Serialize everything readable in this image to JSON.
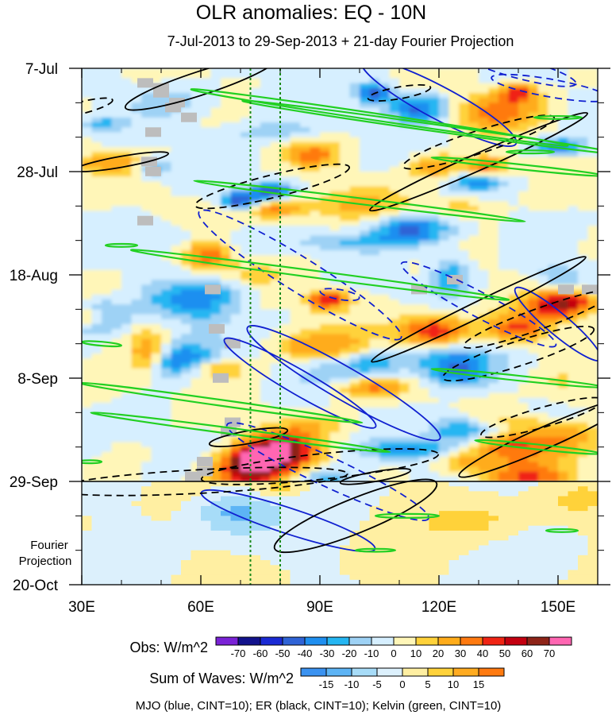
{
  "chart_data": {
    "type": "heatmap",
    "title": "OLR anomalies: EQ - 10N",
    "subtitle": "7-Jul-2013 to 29-Sep-2013 + 21-day Fourier Projection",
    "xlabel": "",
    "ylabel": "",
    "x_range_deg_east": [
      30,
      160
    ],
    "x_ticks": [
      {
        "value": 30,
        "label": "30E"
      },
      {
        "value": 60,
        "label": "60E"
      },
      {
        "value": 90,
        "label": "90E"
      },
      {
        "value": 120,
        "label": "120E"
      },
      {
        "value": 150,
        "label": "150E"
      }
    ],
    "y_range_days_since_7jul": [
      0,
      105
    ],
    "y_ticks": [
      {
        "day": 0,
        "label": "7-Jul"
      },
      {
        "day": 21,
        "label": "28-Jul"
      },
      {
        "day": 42,
        "label": "18-Aug"
      },
      {
        "day": 63,
        "label": "8-Sep"
      },
      {
        "day": 84,
        "label": "29-Sep"
      },
      {
        "day": 105,
        "label": "20-Oct"
      }
    ],
    "observation_end_day": 84,
    "projection_label": "Fourier\nProjection",
    "projection_label_lines": [
      "Fourier",
      "Projection"
    ],
    "reference_longitudes": [
      72.5,
      80
    ],
    "obs_colorbar": {
      "label": "Obs: W/m^2",
      "levels": [
        -70,
        -60,
        -50,
        -40,
        -30,
        -20,
        -10,
        0,
        10,
        20,
        30,
        40,
        50,
        60,
        70
      ],
      "colors": [
        "#7a22d6",
        "#12128c",
        "#1a2ad4",
        "#2f63d6",
        "#1f8ff0",
        "#25b6f2",
        "#9ed2f5",
        "#d6efff",
        "#fff6b8",
        "#ffd23a",
        "#ffac1a",
        "#ff7a10",
        "#f02414",
        "#c40010",
        "#8e2418",
        "#ff66b2"
      ]
    },
    "waves_colorbar": {
      "label": "Sum of Waves: W/m^2",
      "levels": [
        -15,
        -10,
        -5,
        0,
        5,
        10,
        15
      ],
      "colors": [
        "#3a92f0",
        "#5db4f5",
        "#a7dcf8",
        "#dcf0fc",
        "#ffefa2",
        "#ffd23a",
        "#ffab20",
        "#ff7a10"
      ]
    },
    "wave_contours": [
      {
        "name": "MJO",
        "color": "blue",
        "cint": 10
      },
      {
        "name": "ER",
        "color": "black",
        "cint": 10
      },
      {
        "name": "Kelvin",
        "color": "green",
        "cint": 10
      }
    ],
    "footer": "MJO (blue, CINT=10); ER (black, CINT=10); Kelvin (green, CINT=10)",
    "colors": {
      "mjo": "#1020d0",
      "er": "#000000",
      "kelvin": "#22d022",
      "reference_lines": "#1a8a1a"
    }
  }
}
